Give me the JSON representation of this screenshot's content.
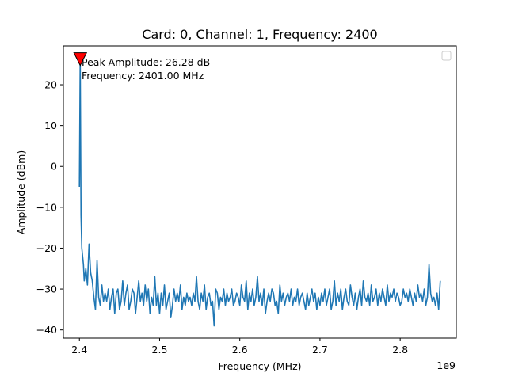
{
  "chart_data": {
    "type": "line",
    "title": "Card: 0, Channel: 1, Frequency: 2400",
    "xlabel": "Frequency (MHz)",
    "ylabel": "Amplitude (dBm)",
    "x_offset_label": "1e9",
    "xlim": [
      2380000000,
      2870000000
    ],
    "ylim": [
      -42,
      29.5
    ],
    "x_ticks": [
      2400000000,
      2500000000,
      2600000000,
      2700000000,
      2800000000
    ],
    "x_tick_labels": [
      "2.4",
      "2.5",
      "2.6",
      "2.7",
      "2.8"
    ],
    "y_ticks": [
      -40,
      -30,
      -20,
      -10,
      0,
      10,
      20
    ],
    "y_tick_labels": [
      "−40",
      "−30",
      "−20",
      "−10",
      "0",
      "10",
      "20"
    ],
    "grid": false,
    "legend": "top-right",
    "legend_entries": [],
    "series": [
      {
        "color": "#1f77b4",
        "x": [
          2400000000,
          2401000000,
          2402000000,
          2403000000,
          2404000000,
          2405000000,
          2406000000,
          2408000000,
          2410000000,
          2412000000,
          2414000000,
          2416000000,
          2418000000,
          2420000000,
          2422000000,
          2424000000,
          2426000000,
          2428000000,
          2430000000,
          2432000000,
          2434000000,
          2436000000,
          2438000000,
          2440000000,
          2442000000,
          2444000000,
          2446000000,
          2448000000,
          2450000000,
          2452000000,
          2454000000,
          2456000000,
          2458000000,
          2460000000,
          2462000000,
          2464000000,
          2466000000,
          2468000000,
          2470000000,
          2472000000,
          2474000000,
          2476000000,
          2478000000,
          2480000000,
          2482000000,
          2484000000,
          2486000000,
          2488000000,
          2490000000,
          2492000000,
          2494000000,
          2496000000,
          2498000000,
          2500000000,
          2502000000,
          2504000000,
          2506000000,
          2508000000,
          2510000000,
          2512000000,
          2514000000,
          2516000000,
          2518000000,
          2520000000,
          2522000000,
          2524000000,
          2526000000,
          2528000000,
          2530000000,
          2532000000,
          2534000000,
          2536000000,
          2538000000,
          2540000000,
          2542000000,
          2544000000,
          2546000000,
          2548000000,
          2550000000,
          2552000000,
          2554000000,
          2556000000,
          2558000000,
          2560000000,
          2562000000,
          2564000000,
          2566000000,
          2568000000,
          2570000000,
          2572000000,
          2574000000,
          2576000000,
          2578000000,
          2580000000,
          2582000000,
          2584000000,
          2586000000,
          2588000000,
          2590000000,
          2592000000,
          2594000000,
          2596000000,
          2598000000,
          2600000000,
          2602000000,
          2604000000,
          2606000000,
          2608000000,
          2610000000,
          2612000000,
          2614000000,
          2616000000,
          2618000000,
          2620000000,
          2622000000,
          2624000000,
          2626000000,
          2628000000,
          2630000000,
          2632000000,
          2634000000,
          2636000000,
          2638000000,
          2640000000,
          2642000000,
          2644000000,
          2646000000,
          2648000000,
          2650000000,
          2652000000,
          2654000000,
          2656000000,
          2658000000,
          2660000000,
          2662000000,
          2664000000,
          2666000000,
          2668000000,
          2670000000,
          2672000000,
          2674000000,
          2676000000,
          2678000000,
          2680000000,
          2682000000,
          2684000000,
          2686000000,
          2688000000,
          2690000000,
          2692000000,
          2694000000,
          2696000000,
          2698000000,
          2700000000,
          2702000000,
          2704000000,
          2706000000,
          2708000000,
          2710000000,
          2712000000,
          2714000000,
          2716000000,
          2718000000,
          2720000000,
          2722000000,
          2724000000,
          2726000000,
          2728000000,
          2730000000,
          2732000000,
          2734000000,
          2736000000,
          2738000000,
          2740000000,
          2742000000,
          2744000000,
          2746000000,
          2748000000,
          2750000000,
          2752000000,
          2754000000,
          2756000000,
          2758000000,
          2760000000,
          2762000000,
          2764000000,
          2766000000,
          2768000000,
          2770000000,
          2772000000,
          2774000000,
          2776000000,
          2778000000,
          2780000000,
          2782000000,
          2784000000,
          2786000000,
          2788000000,
          2790000000,
          2792000000,
          2794000000,
          2796000000,
          2798000000,
          2800000000,
          2802000000,
          2804000000,
          2806000000,
          2808000000,
          2810000000,
          2812000000,
          2814000000,
          2816000000,
          2818000000,
          2820000000,
          2822000000,
          2824000000,
          2826000000,
          2828000000,
          2830000000,
          2832000000,
          2834000000,
          2836000000,
          2838000000,
          2840000000,
          2842000000,
          2844000000,
          2846000000,
          2848000000,
          2850000000
        ],
        "y": [
          -5.0,
          26.28,
          -12.0,
          -20.0,
          -22.0,
          -24.0,
          -28.0,
          -25.0,
          -29.0,
          -19.0,
          -26.0,
          -28.0,
          -32.0,
          -35.0,
          -23.0,
          -32.0,
          -34.0,
          -29.0,
          -33.0,
          -31.0,
          -33.0,
          -30.0,
          -35.0,
          -32.0,
          -30.0,
          -36.0,
          -31.0,
          -30.0,
          -35.0,
          -33.0,
          -28.0,
          -34.0,
          -31.0,
          -29.0,
          -35.0,
          -33.0,
          -30.0,
          -31.0,
          -36.0,
          -32.0,
          -28.0,
          -33.0,
          -31.0,
          -34.0,
          -29.0,
          -33.0,
          -30.0,
          -36.0,
          -32.0,
          -34.0,
          -27.0,
          -34.0,
          -31.0,
          -36.0,
          -31.0,
          -34.0,
          -29.0,
          -35.0,
          -33.0,
          -31.0,
          -37.0,
          -34.0,
          -30.0,
          -33.0,
          -31.0,
          -33.0,
          -29.0,
          -35.0,
          -32.0,
          -34.0,
          -31.0,
          -33.0,
          -32.0,
          -34.0,
          -31.0,
          -33.0,
          -27.0,
          -33.0,
          -35.0,
          -31.0,
          -33.0,
          -29.0,
          -35.0,
          -32.0,
          -31.0,
          -34.0,
          -33.0,
          -39.0,
          -30.0,
          -31.0,
          -35.0,
          -32.0,
          -33.0,
          -30.0,
          -34.0,
          -31.0,
          -33.0,
          -32.0,
          -30.0,
          -34.0,
          -33.0,
          -31.0,
          -32.0,
          -34.0,
          -29.0,
          -32.0,
          -33.0,
          -28.0,
          -35.0,
          -31.0,
          -33.0,
          -30.0,
          -34.0,
          -32.0,
          -27.0,
          -33.0,
          -31.0,
          -34.0,
          -30.0,
          -36.0,
          -33.0,
          -31.0,
          -33.0,
          -30.0,
          -31.0,
          -34.0,
          -33.0,
          -36.0,
          -29.0,
          -33.0,
          -31.0,
          -34.0,
          -32.0,
          -31.0,
          -33.0,
          -30.0,
          -34.0,
          -32.0,
          -33.0,
          -30.0,
          -34.0,
          -32.0,
          -31.0,
          -33.0,
          -35.0,
          -31.0,
          -34.0,
          -32.0,
          -30.0,
          -33.0,
          -31.0,
          -35.0,
          -32.0,
          -34.0,
          -31.0,
          -33.0,
          -30.0,
          -34.0,
          -32.0,
          -30.0,
          -35.0,
          -33.0,
          -28.0,
          -34.0,
          -31.0,
          -33.0,
          -30.0,
          -35.0,
          -32.0,
          -30.0,
          -33.0,
          -34.0,
          -29.0,
          -32.0,
          -34.0,
          -31.0,
          -35.0,
          -32.0,
          -30.0,
          -34.0,
          -28.0,
          -32.0,
          -33.0,
          -31.0,
          -34.0,
          -29.0,
          -33.0,
          -32.0,
          -30.0,
          -34.0,
          -31.0,
          -33.0,
          -30.0,
          -32.0,
          -34.0,
          -29.0,
          -33.0,
          -31.0,
          -32.0,
          -30.0,
          -33.0,
          -31.0,
          -32.0,
          -34.0,
          -33.0,
          -30.0,
          -32.0,
          -31.0,
          -33.0,
          -30.0,
          -32.0,
          -34.0,
          -31.0,
          -33.0,
          -29.0,
          -32.0,
          -31.0,
          -33.0,
          -30.0,
          -34.0,
          -32.0,
          -24.0,
          -31.0,
          -33.0,
          -32.0,
          -34.0,
          -31.0,
          -35.0,
          -28.0
        ]
      }
    ],
    "peak_marker": {
      "x": 2401000000,
      "y": 26.28,
      "color": "#ff0000"
    },
    "annotation": {
      "line1": "Peak Amplitude: 26.28 dB",
      "line2": "Frequency: 2401.00 MHz"
    }
  }
}
